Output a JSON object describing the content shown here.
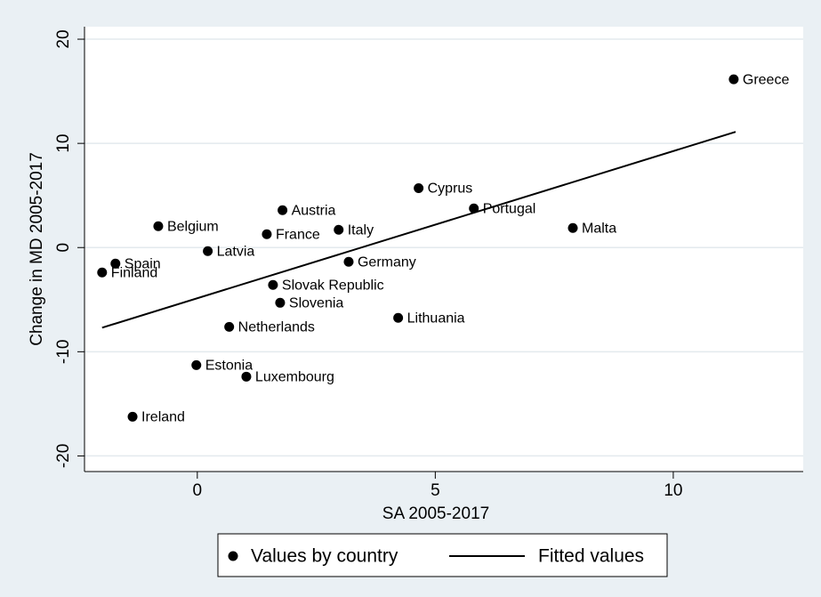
{
  "chart_data": {
    "type": "scatter",
    "xlabel": "SA 2005-2017",
    "ylabel": "Change in MD 2005-2017",
    "xlim": [
      -2.37,
      12.73
    ],
    "ylim": [
      -21.5,
      21.2
    ],
    "xticks": [
      0,
      5,
      10
    ],
    "yticks": [
      -20,
      -10,
      0,
      10,
      20
    ],
    "grid": true,
    "legend": "bottom",
    "series": [
      {
        "name": "Values by country",
        "color": "#000000",
        "labels": [
          "Greece",
          "Cyprus",
          "Portugal",
          "Malta",
          "Austria",
          "Belgium",
          "Italy",
          "France",
          "Latvia",
          "Germany",
          "Spain",
          "Finland",
          "Slovak Republic",
          "Slovenia",
          "Lithuania",
          "Netherlands",
          "Estonia",
          "Luxembourg",
          "Ireland"
        ],
        "x": [
          11.27,
          4.65,
          5.81,
          7.89,
          1.79,
          -0.82,
          2.97,
          1.46,
          0.22,
          3.18,
          -1.72,
          -2.0,
          1.59,
          1.74,
          4.22,
          0.67,
          -0.02,
          1.03,
          -1.36
        ],
        "values": [
          16.15,
          5.7,
          3.76,
          1.88,
          3.59,
          2.05,
          1.71,
          1.28,
          -0.34,
          -1.37,
          -1.54,
          -2.39,
          -3.59,
          -5.3,
          -6.75,
          -7.61,
          -11.28,
          -12.39,
          -16.24
        ]
      },
      {
        "name": "Fitted values",
        "type": "line",
        "color": "#000000",
        "x": [
          -2.0,
          11.31
        ],
        "values": [
          -7.69,
          11.11
        ]
      }
    ]
  }
}
